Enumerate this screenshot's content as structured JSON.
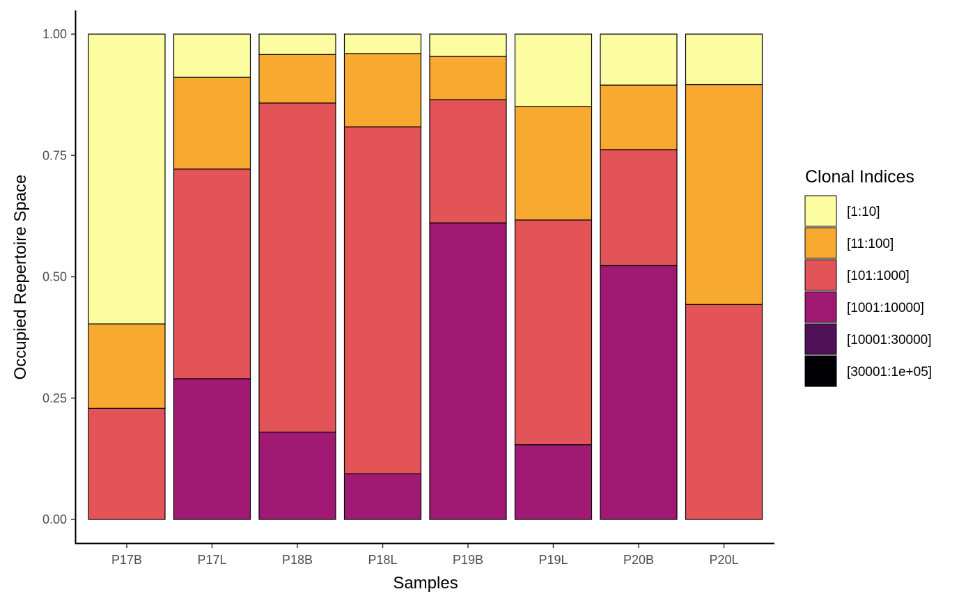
{
  "chart_data": {
    "type": "bar",
    "stacked": true,
    "categories": [
      "P17B",
      "P17L",
      "P18B",
      "P18L",
      "P19B",
      "P19L",
      "P20B",
      "P20L"
    ],
    "series": [
      {
        "name": "[1:10]",
        "color": "#FCFDA0",
        "values": [
          0.597,
          0.089,
          0.042,
          0.04,
          0.046,
          0.149,
          0.105,
          0.104
        ]
      },
      {
        "name": "[11:100]",
        "color": "#F8A92F",
        "values": [
          0.174,
          0.189,
          0.1,
          0.151,
          0.089,
          0.234,
          0.133,
          0.453
        ]
      },
      {
        "name": "[101:1000]",
        "color": "#E35458",
        "values": [
          0.229,
          0.432,
          0.678,
          0.715,
          0.254,
          0.463,
          0.239,
          0.443
        ]
      },
      {
        "name": "[1001:10000]",
        "color": "#A01A73",
        "values": [
          0,
          0.29,
          0.18,
          0.094,
          0.611,
          0.154,
          0.523,
          0
        ]
      },
      {
        "name": "[10001:30000]",
        "color": "#4F1257",
        "values": [
          0,
          0,
          0,
          0,
          0,
          0,
          0,
          0
        ]
      },
      {
        "name": "[30001:1e+05]",
        "color": "#000004",
        "values": [
          0,
          0,
          0,
          0,
          0,
          0,
          0,
          0
        ]
      }
    ],
    "title": "",
    "xlabel": "Samples",
    "ylabel": "Occupied Repertoire Space",
    "ylim": [
      0,
      1
    ],
    "yticks": [
      "0.00",
      "0.25",
      "0.50",
      "0.75",
      "1.00"
    ],
    "legend_title": "Clonal Indices",
    "legend_position": "right",
    "grid": false
  }
}
